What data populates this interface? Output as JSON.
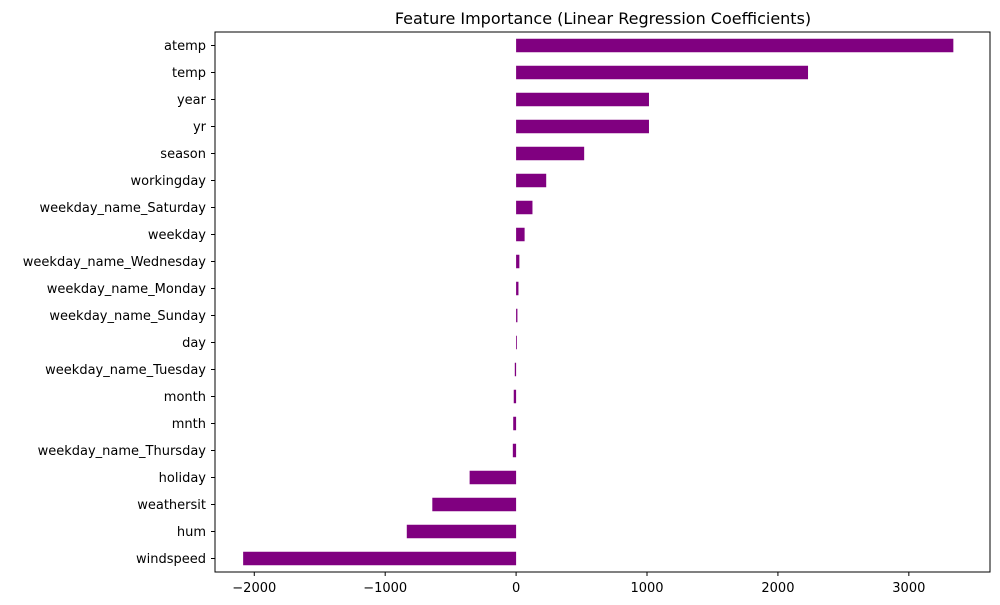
{
  "chart_data": {
    "type": "bar",
    "orientation": "horizontal",
    "title": "Feature Importance (Linear Regression Coefficients)",
    "xlabel": "",
    "ylabel": "",
    "xlim": [
      -2300,
      3620
    ],
    "xticks": [
      -2000,
      -1000,
      0,
      1000,
      2000,
      3000
    ],
    "xtick_labels": [
      "−2000",
      "−1000",
      "0",
      "1000",
      "2000",
      "3000"
    ],
    "grid": false,
    "legend": "none",
    "bar_color": "#800080",
    "categories": [
      "atemp",
      "temp",
      "year",
      "yr",
      "season",
      "workingday",
      "weekday_name_Saturday",
      "weekday",
      "weekday_name_Wednesday",
      "weekday_name_Monday",
      "weekday_name_Sunday",
      "day",
      "weekday_name_Tuesday",
      "month",
      "mnth",
      "weekday_name_Thursday",
      "holiday",
      "weathersit",
      "hum",
      "windspeed"
    ],
    "values": [
      3340,
      2230,
      1015,
      1015,
      520,
      230,
      125,
      65,
      25,
      18,
      10,
      2,
      -10,
      -18,
      -22,
      -25,
      -355,
      -640,
      -835,
      -2085
    ]
  }
}
